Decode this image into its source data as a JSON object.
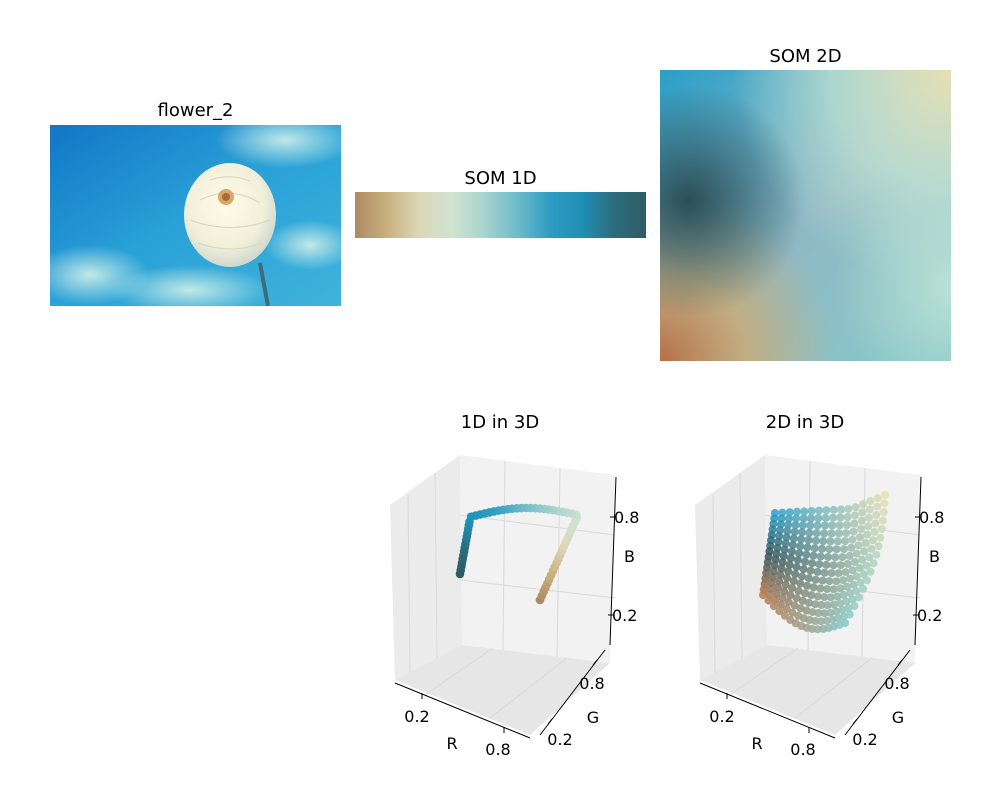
{
  "panels": {
    "image": {
      "title": "flower_2"
    },
    "som1d": {
      "title": "SOM 1D"
    },
    "som2d": {
      "title": "SOM 2D"
    },
    "plot1d": {
      "title": "1D in 3D"
    },
    "plot2d": {
      "title": "2D in 3D"
    }
  },
  "colors": {
    "som1d_gradient": [
      "#ad8a62",
      "#c8b07f",
      "#ddd7b8",
      "#cfe3d0",
      "#a8d3cd",
      "#6fbcc9",
      "#2f9dc2",
      "#1f8fb6",
      "#2c6d7e",
      "#2f5b64"
    ],
    "som2d_corners": {
      "top_left": "#28a0cb",
      "top_right": "#e5dfb4",
      "middle_left": "#2f5158",
      "bottom_left": "#b8784e",
      "bottom_right": "#86c9c9"
    }
  },
  "chart_data": [
    {
      "type": "scatter",
      "title": "1D in 3D",
      "xlabel": "R",
      "ylabel": "G",
      "zlabel": "B",
      "xticks": [
        "0.2",
        "0.8"
      ],
      "yticks": [
        "0.8",
        "0.2"
      ],
      "zticks": [
        "0.8",
        "0.2"
      ],
      "grid": true
    },
    {
      "type": "scatter",
      "title": "2D in 3D",
      "xlabel": "R",
      "ylabel": "G",
      "zlabel": "B",
      "xticks": [
        "0.2",
        "0.8"
      ],
      "yticks": [
        "0.8",
        "0.2"
      ],
      "zticks": [
        "0.8",
        "0.2"
      ],
      "grid": true
    }
  ]
}
